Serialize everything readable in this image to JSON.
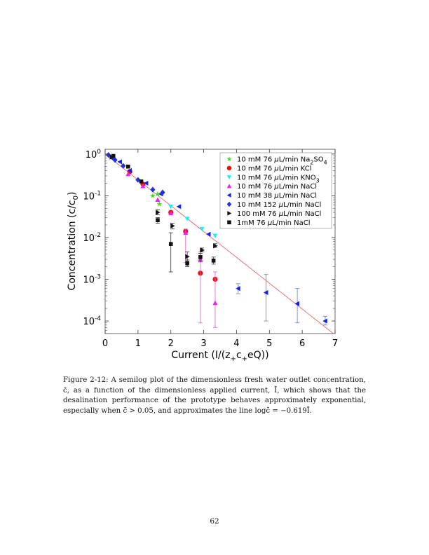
{
  "caption": {
    "label": "Figure 2-12:",
    "text": "A semilog plot of the dimensionless fresh water outlet concentration, c̄, as a function of the dimensionless applied current, Ī, which shows that the desalination performance of the prototype behaves approximately exponential, especially when c̄ > 0.05, and approximates the line logc̄ = −0.619Ī."
  },
  "page_number": "62",
  "chart_data": {
    "type": "scatter",
    "yscale": "log",
    "xlabel": "Current (I/(z",
    "xlabel_parts": [
      "Current (I/(z",
      "+",
      "c",
      "+",
      "eQ))"
    ],
    "ylabel_parts": [
      "Concentration (c/c",
      "0",
      ")"
    ],
    "xlim": [
      0,
      7
    ],
    "ylim": [
      5e-05,
      1.3
    ],
    "xticks": [
      "0",
      "1",
      "2",
      "3",
      "4",
      "5",
      "6",
      "7"
    ],
    "yticks": [
      {
        "base": "10",
        "exp": "0",
        "value": 1
      },
      {
        "base": "10",
        "exp": "-1",
        "value": 0.1
      },
      {
        "base": "10",
        "exp": "-2",
        "value": 0.01
      },
      {
        "base": "10",
        "exp": "-3",
        "value": 0.001
      },
      {
        "base": "10",
        "exp": "-4",
        "value": 0.0001
      }
    ],
    "legend_position": "top-right",
    "fit_line": {
      "label": "log c = -0.619 I",
      "slope": -0.619,
      "color": "#e8676a"
    },
    "series": [
      {
        "name": "10 mM 76 μL/min Na2SO4",
        "legend": [
          "10 mM 76 ",
          "μ",
          "L/min Na",
          "2",
          "SO",
          "4"
        ],
        "marker": "star",
        "color": "#44dd22",
        "points": [
          [
            1.45,
            0.1
          ],
          [
            1.6,
            0.11
          ],
          [
            1.65,
            0.063
          ]
        ]
      },
      {
        "name": "10 mM 76 μL/min KCl",
        "legend": [
          "10 mM 76 ",
          "μ",
          "L/min KCl"
        ],
        "marker": "circle",
        "color": "#ee1111",
        "points": [
          [
            0.75,
            0.38
          ],
          [
            1.15,
            0.19
          ],
          [
            2.0,
            0.04
          ],
          [
            2.45,
            0.014
          ],
          [
            2.9,
            0.0014
          ],
          [
            3.35,
            0.001
          ]
        ]
      },
      {
        "name": "10 mM 76 μL/min KNO3",
        "legend": [
          "10 mM 76 ",
          "μ",
          "L/min KNO",
          "3"
        ],
        "marker": "triangle-down",
        "color": "#22eeee",
        "points": [
          [
            2.0,
            0.055
          ],
          [
            2.5,
            0.028
          ],
          [
            2.95,
            0.016
          ],
          [
            3.35,
            0.011
          ]
        ]
      },
      {
        "name": "10 mM 76 μL/min NaCl",
        "legend": [
          "10 mM 76 ",
          "μ",
          "L/min NaCl"
        ],
        "marker": "triangle-up",
        "color": "#ee22ee",
        "points": [
          [
            0.7,
            0.33
          ],
          [
            1.15,
            0.17
          ],
          [
            1.6,
            0.08
          ],
          [
            2.0,
            0.038
          ],
          [
            2.45,
            0.013
          ],
          [
            2.9,
            0.003
          ],
          [
            3.35,
            0.00027
          ]
        ],
        "errors": [
          [
            2.45,
            0.0025,
            0.016
          ],
          [
            2.9,
            9e-05,
            0.0045
          ],
          [
            3.35,
            7e-05,
            0.0015
          ]
        ]
      },
      {
        "name": "10 mM 38 μL/min NaCl",
        "legend": [
          "10 mM 38 ",
          "μ",
          "L/min NaCl"
        ],
        "marker": "triangle-left",
        "color": "#1122ee",
        "points": [
          [
            0.2,
            0.8
          ],
          [
            0.45,
            0.65
          ],
          [
            0.75,
            0.4
          ],
          [
            1.25,
            0.2
          ],
          [
            1.7,
            0.11
          ],
          [
            2.25,
            0.055
          ],
          [
            3.15,
            0.012
          ],
          [
            4.05,
            0.0006
          ],
          [
            4.9,
            0.00048
          ],
          [
            5.85,
            0.00026
          ],
          [
            6.7,
            0.0001
          ]
        ],
        "errors": [
          [
            4.05,
            0.00045,
            0.00078
          ],
          [
            4.9,
            0.0001,
            0.0013
          ],
          [
            5.85,
            9e-05,
            0.0006
          ],
          [
            6.7,
            8e-05,
            0.00013
          ]
        ]
      },
      {
        "name": "10 mM 152 μL/min NaCl",
        "legend": [
          "10 mM 152 ",
          "μ",
          "L/min NaCl"
        ],
        "marker": "diamond",
        "color": "#2233dd",
        "points": [
          [
            0.1,
            0.95
          ],
          [
            0.3,
            0.72
          ],
          [
            0.55,
            0.52
          ],
          [
            1.0,
            0.24
          ],
          [
            1.45,
            0.14
          ],
          [
            1.75,
            0.12
          ]
        ]
      },
      {
        "name": "100 mM 76 μL/min NaCl",
        "legend": [
          "100 mM 76 ",
          "μ",
          "L/min NaCl"
        ],
        "marker": "triangle-right",
        "color": "#111111",
        "points": [
          [
            0.2,
            0.85
          ],
          [
            1.6,
            0.04
          ],
          [
            2.05,
            0.019
          ],
          [
            2.5,
            0.0035
          ],
          [
            2.95,
            0.005
          ],
          [
            3.35,
            0.0063
          ]
        ],
        "errors": [
          [
            1.6,
            0.035,
            0.046
          ],
          [
            2.05,
            0.016,
            0.022
          ],
          [
            2.5,
            0.0027,
            0.0045
          ],
          [
            2.95,
            0.0045,
            0.0056
          ],
          [
            3.35,
            0.0058,
            0.0071
          ]
        ]
      },
      {
        "name": "1mM 76 μL/min NaCl",
        "legend": [
          "1mM 76 ",
          "μ",
          "L/min NaCl"
        ],
        "marker": "square",
        "color": "#111111",
        "points": [
          [
            0.25,
            0.9
          ],
          [
            0.7,
            0.5
          ],
          [
            1.1,
            0.22
          ],
          [
            1.6,
            0.026
          ],
          [
            2.0,
            0.007
          ],
          [
            2.5,
            0.0024
          ],
          [
            2.9,
            0.0034
          ],
          [
            3.3,
            0.0028
          ]
        ],
        "errors": [
          [
            1.6,
            0.022,
            0.03
          ],
          [
            2.0,
            0.0015,
            0.013
          ],
          [
            2.5,
            0.002,
            0.0029
          ],
          [
            2.9,
            0.0026,
            0.0042
          ],
          [
            3.3,
            0.0023,
            0.0034
          ]
        ]
      }
    ]
  }
}
